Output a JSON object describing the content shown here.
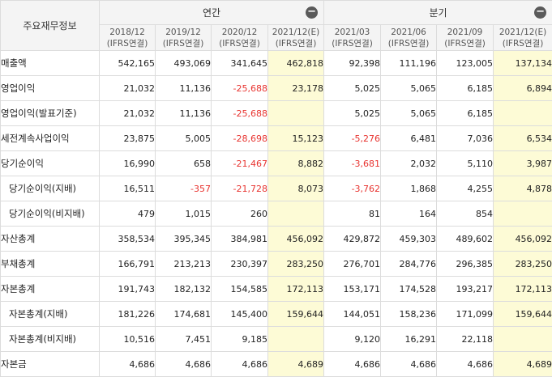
{
  "header": {
    "corner_label": "주요재무정보",
    "annual_label": "연간",
    "quarterly_label": "분기",
    "collapse_glyph": "−",
    "columns": [
      {
        "period": "2018/12",
        "basis": "(IFRS연결)"
      },
      {
        "period": "2019/12",
        "basis": "(IFRS연결)"
      },
      {
        "period": "2020/12",
        "basis": "(IFRS연결)"
      },
      {
        "period": "2021/12(E)",
        "basis": "(IFRS연결)"
      },
      {
        "period": "2021/03",
        "basis": "(IFRS연결)"
      },
      {
        "period": "2021/06",
        "basis": "(IFRS연결)"
      },
      {
        "period": "2021/09",
        "basis": "(IFRS연결)"
      },
      {
        "period": "2021/12(E)",
        "basis": "(IFRS연결)"
      }
    ]
  },
  "colors": {
    "negative": "#e8332f",
    "estimate_bg": "#fdfbd6",
    "header_bg": "#f4f4f4"
  },
  "icons": {
    "collapse": "minus-circle-icon"
  },
  "rows": [
    {
      "label": "매출액",
      "sub": false,
      "values": [
        "542,165",
        "493,069",
        "341,645",
        "462,818",
        "92,398",
        "111,196",
        "123,005",
        "137,134"
      ]
    },
    {
      "label": "영업이익",
      "sub": false,
      "values": [
        "21,032",
        "11,136",
        "-25,688",
        "23,178",
        "5,025",
        "5,065",
        "6,185",
        "6,894"
      ]
    },
    {
      "label": "영업이익(발표기준)",
      "sub": false,
      "values": [
        "21,032",
        "11,136",
        "-25,688",
        "",
        "5,025",
        "5,065",
        "6,185",
        ""
      ]
    },
    {
      "label": "세전계속사업이익",
      "sub": false,
      "values": [
        "23,875",
        "5,005",
        "-28,698",
        "15,123",
        "-5,276",
        "6,481",
        "7,036",
        "6,534"
      ]
    },
    {
      "label": "당기순이익",
      "sub": false,
      "values": [
        "16,990",
        "658",
        "-21,467",
        "8,882",
        "-3,681",
        "2,032",
        "5,110",
        "3,987"
      ]
    },
    {
      "label": "당기순이익(지배)",
      "sub": true,
      "values": [
        "16,511",
        "-357",
        "-21,728",
        "8,073",
        "-3,762",
        "1,868",
        "4,255",
        "4,878"
      ]
    },
    {
      "label": "당기순이익(비지배)",
      "sub": true,
      "values": [
        "479",
        "1,015",
        "260",
        "",
        "81",
        "164",
        "854",
        ""
      ]
    },
    {
      "label": "자산총계",
      "sub": false,
      "values": [
        "358,534",
        "395,345",
        "384,981",
        "456,092",
        "429,872",
        "459,303",
        "489,602",
        "456,092"
      ]
    },
    {
      "label": "부채총계",
      "sub": false,
      "values": [
        "166,791",
        "213,213",
        "230,397",
        "283,250",
        "276,701",
        "284,776",
        "296,385",
        "283,250"
      ]
    },
    {
      "label": "자본총계",
      "sub": false,
      "values": [
        "191,743",
        "182,132",
        "154,585",
        "172,113",
        "153,171",
        "174,528",
        "193,217",
        "172,113"
      ]
    },
    {
      "label": "자본총계(지배)",
      "sub": true,
      "values": [
        "181,226",
        "174,681",
        "145,400",
        "159,644",
        "144,051",
        "158,236",
        "171,099",
        "159,644"
      ]
    },
    {
      "label": "자본총계(비지배)",
      "sub": true,
      "values": [
        "10,516",
        "7,451",
        "9,185",
        "",
        "9,120",
        "16,291",
        "22,118",
        ""
      ]
    },
    {
      "label": "자본금",
      "sub": false,
      "values": [
        "4,686",
        "4,686",
        "4,686",
        "4,689",
        "4,686",
        "4,686",
        "4,686",
        "4,689"
      ]
    }
  ]
}
